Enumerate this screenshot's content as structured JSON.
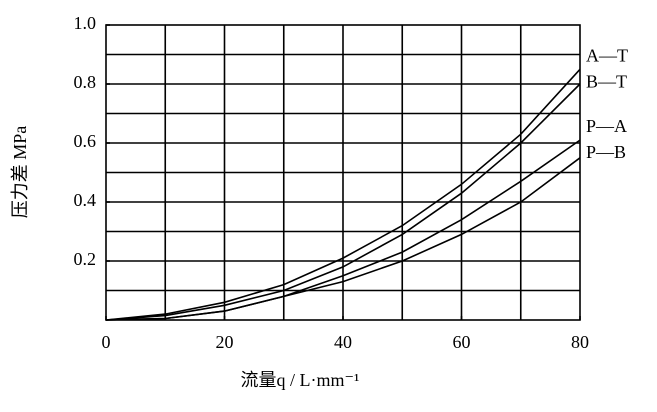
{
  "chart_data": {
    "type": "line",
    "x_label": "流量q / L·mm⁻¹",
    "y_label": "压力差 MPa",
    "x": [
      0,
      10,
      20,
      30,
      40,
      50,
      60,
      70,
      80
    ],
    "series": [
      {
        "name": "A—T",
        "color": "#000000",
        "values": [
          0,
          0.02,
          0.06,
          0.12,
          0.21,
          0.32,
          0.46,
          0.63,
          0.85
        ]
      },
      {
        "name": "B—T",
        "color": "#000000",
        "values": [
          0,
          0.015,
          0.05,
          0.1,
          0.18,
          0.29,
          0.43,
          0.6,
          0.8
        ]
      },
      {
        "name": "P—A",
        "color": "#000000",
        "values": [
          0,
          0.005,
          0.03,
          0.08,
          0.15,
          0.23,
          0.34,
          0.47,
          0.61
        ]
      },
      {
        "name": "P—B",
        "color": "#000000",
        "values": [
          0,
          0.005,
          0.03,
          0.08,
          0.13,
          0.2,
          0.29,
          0.4,
          0.55
        ]
      }
    ],
    "xlim": [
      0,
      80
    ],
    "ylim": [
      0,
      1
    ],
    "xticks": [
      0,
      20,
      40,
      60,
      80
    ],
    "yticks": [
      0.2,
      0.4,
      0.6,
      0.8,
      {
        "value": 1,
        "label": "1.0"
      }
    ],
    "xgrid": [
      10,
      20,
      30,
      40,
      50,
      60,
      70
    ],
    "ygrid": [
      0.1,
      0.2,
      0.3,
      0.4,
      0.5,
      0.6,
      0.7,
      0.8,
      0.9
    ],
    "grid": true
  }
}
